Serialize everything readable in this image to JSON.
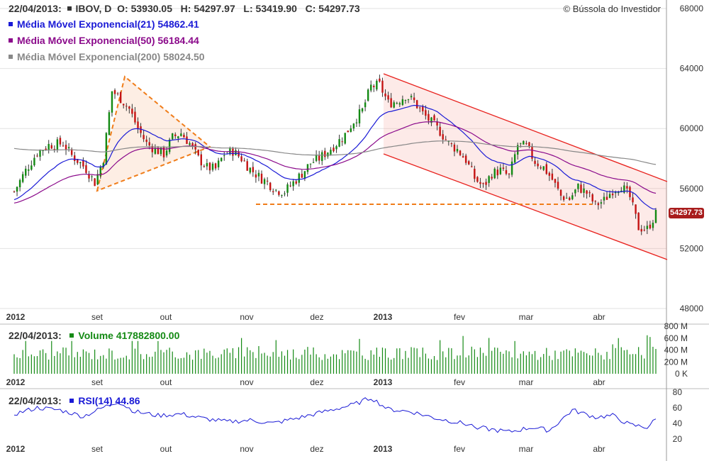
{
  "header": {
    "date": "22/04/2013:",
    "symbol": "IBOV, D",
    "open_label": "O:",
    "open": "53930.05",
    "high_label": "H:",
    "high": "54297.97",
    "low_label": "L:",
    "low": "53419.90",
    "close_label": "C:",
    "close": "54297.73",
    "copyright": "© Bússola do Investidor"
  },
  "legend": [
    {
      "label": "Média Móvel Exponencial(21)",
      "value": "54862.41",
      "color": "#1a1ad6"
    },
    {
      "label": "Média Móvel Exponencial(50)",
      "value": "56184.44",
      "color": "#8b0a8b"
    },
    {
      "label": "Média Móvel Exponencial(200)",
      "value": "58024.50",
      "color": "#888888"
    }
  ],
  "price_tag": "54297.73",
  "volume_panel": {
    "date": "22/04/2013:",
    "label": "Volume",
    "value": "417882800.00"
  },
  "rsi_panel": {
    "date": "22/04/2013:",
    "label": "RSI(14)",
    "value": "44.86"
  },
  "colors": {
    "up": "#148a14",
    "down": "#c51414",
    "channel": "#e8211d",
    "annotation": "#f07d1a",
    "volume": "#148a14",
    "rsi": "#1a1ad6"
  },
  "chart_data": [
    {
      "type": "candlestick",
      "x_tick_labels": [
        "2012",
        "set",
        "out",
        "nov",
        "dez",
        "2013",
        "fev",
        "mar",
        "abr"
      ],
      "bold_ticks": [
        "2012",
        "2013"
      ],
      "y_tick_labels": [
        "68000",
        "64000",
        "60000",
        "56000",
        "52000",
        "48000"
      ],
      "ylim": [
        48000,
        68000
      ],
      "grid": true,
      "series": [
        {
          "name": "Média Móvel Exponencial(21)",
          "last": 54862.41
        },
        {
          "name": "Média Móvel Exponencial(50)",
          "last": 56184.44
        },
        {
          "name": "Média Móvel Exponencial(200)",
          "last": 58024.5
        }
      ],
      "price_path": [
        [
          0,
          55800
        ],
        [
          4,
          57200
        ],
        [
          8,
          58400
        ],
        [
          12,
          58900
        ],
        [
          17,
          59000
        ],
        [
          20,
          58200
        ],
        [
          23,
          57700
        ],
        [
          25,
          57300
        ],
        [
          28,
          56400
        ],
        [
          31,
          58000
        ],
        [
          34,
          62500
        ],
        [
          37,
          62000
        ],
        [
          40,
          61300
        ],
        [
          43,
          60000
        ],
        [
          46,
          59000
        ],
        [
          49,
          58600
        ],
        [
          52,
          58300
        ],
        [
          55,
          59400
        ],
        [
          58,
          59700
        ],
        [
          61,
          59000
        ],
        [
          64,
          58000
        ],
        [
          67,
          57400
        ],
        [
          70,
          57300
        ],
        [
          73,
          58300
        ],
        [
          76,
          58500
        ],
        [
          79,
          58000
        ],
        [
          82,
          57300
        ],
        [
          85,
          56800
        ],
        [
          88,
          56400
        ],
        [
          91,
          55900
        ],
        [
          94,
          55800
        ],
        [
          97,
          56400
        ],
        [
          100,
          57000
        ],
        [
          103,
          57700
        ],
        [
          106,
          58000
        ],
        [
          109,
          58500
        ],
        [
          112,
          59000
        ],
        [
          115,
          59600
        ],
        [
          118,
          60500
        ],
        [
          121,
          61200
        ],
        [
          124,
          62800
        ],
        [
          127,
          62900
        ],
        [
          130,
          61700
        ],
        [
          133,
          61800
        ],
        [
          136,
          62200
        ],
        [
          139,
          61800
        ],
        [
          142,
          61000
        ],
        [
          145,
          60400
        ],
        [
          148,
          59800
        ],
        [
          151,
          59000
        ],
        [
          154,
          58600
        ],
        [
          157,
          57900
        ],
        [
          160,
          56700
        ],
        [
          163,
          56100
        ],
        [
          166,
          57000
        ],
        [
          169,
          57200
        ],
        [
          172,
          56800
        ],
        [
          175,
          58900
        ],
        [
          178,
          58800
        ],
        [
          181,
          57800
        ],
        [
          184,
          57400
        ],
        [
          187,
          56600
        ],
        [
          190,
          55500
        ],
        [
          193,
          55300
        ],
        [
          196,
          56100
        ],
        [
          199,
          55700
        ],
        [
          202,
          54900
        ],
        [
          205,
          55200
        ],
        [
          208,
          55900
        ],
        [
          211,
          56200
        ],
        [
          214,
          55400
        ],
        [
          217,
          53400
        ],
        [
          220,
          53300
        ],
        [
          223,
          54300
        ]
      ],
      "price_n": 224
    },
    {
      "type": "bar",
      "title": "Volume",
      "y_tick_labels": [
        "800 M",
        "600 M",
        "400 M",
        "200 M",
        "0 K"
      ],
      "ylim": [
        0,
        800
      ],
      "unit": "M",
      "last_value": 417.88
    },
    {
      "type": "line",
      "title": "RSI(14)",
      "y_tick_labels": [
        "80",
        "60",
        "40",
        "20"
      ],
      "ylim": [
        20,
        80
      ],
      "values_path": [
        [
          0,
          52
        ],
        [
          8,
          60
        ],
        [
          16,
          57
        ],
        [
          24,
          49
        ],
        [
          32,
          62
        ],
        [
          36,
          68
        ],
        [
          42,
          55
        ],
        [
          50,
          50
        ],
        [
          58,
          52
        ],
        [
          66,
          46
        ],
        [
          74,
          42
        ],
        [
          82,
          44
        ],
        [
          90,
          40
        ],
        [
          100,
          48
        ],
        [
          110,
          57
        ],
        [
          118,
          64
        ],
        [
          124,
          73
        ],
        [
          130,
          58
        ],
        [
          138,
          55
        ],
        [
          146,
          47
        ],
        [
          156,
          40
        ],
        [
          164,
          33
        ],
        [
          172,
          29
        ],
        [
          180,
          35
        ],
        [
          186,
          31
        ],
        [
          194,
          57
        ],
        [
          202,
          48
        ],
        [
          208,
          50
        ],
        [
          214,
          38
        ],
        [
          220,
          35
        ],
        [
          223,
          45
        ]
      ]
    }
  ]
}
